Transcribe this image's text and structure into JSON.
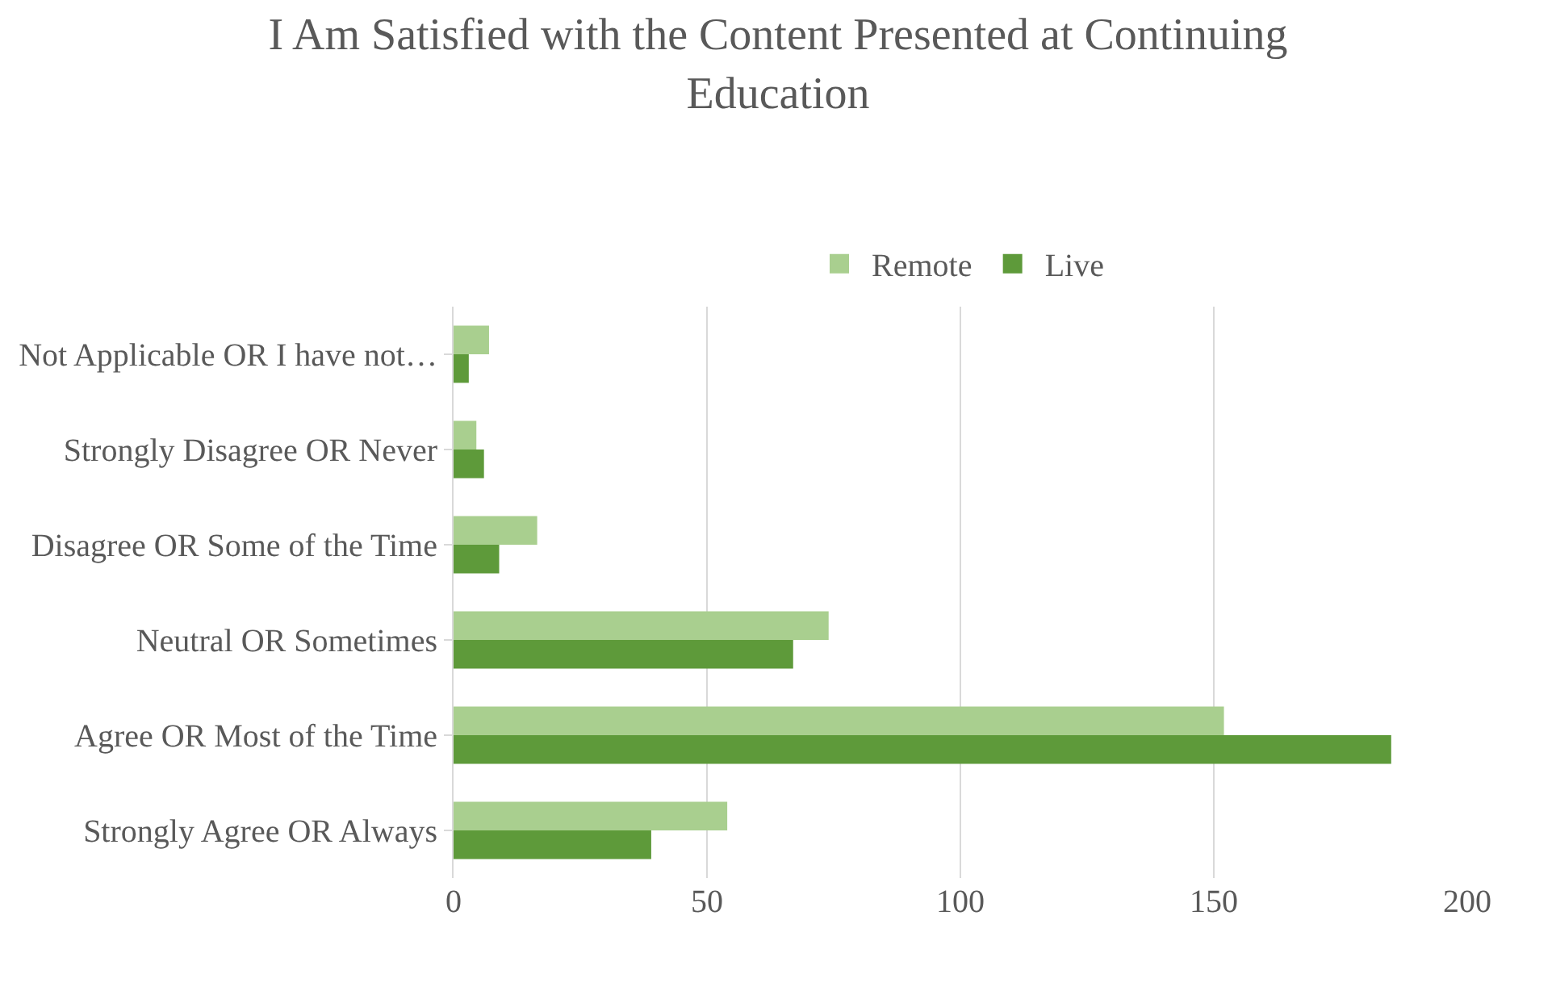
{
  "chart_data": {
    "type": "bar",
    "orientation": "horizontal",
    "title": "I Am Satisfied with the Content Presented at Continuing Education",
    "categories": [
      "Not Applicable OR I have not…",
      "Strongly Disagree OR Never",
      "Disagree OR Some of the Time",
      "Neutral OR Sometimes",
      "Agree OR Most of the Time",
      "Strongly Agree OR Always"
    ],
    "series": [
      {
        "name": "Remote",
        "color": "#a9cf8f",
        "values": [
          7,
          4.5,
          16.5,
          74,
          152,
          54
        ]
      },
      {
        "name": "Live",
        "color": "#5e9a3a",
        "values": [
          3,
          6,
          9,
          67,
          185,
          39
        ]
      }
    ],
    "xlim": [
      0,
      200
    ],
    "xticks": [
      0,
      50,
      100,
      150,
      200
    ],
    "grid": "x",
    "legend": "top"
  }
}
